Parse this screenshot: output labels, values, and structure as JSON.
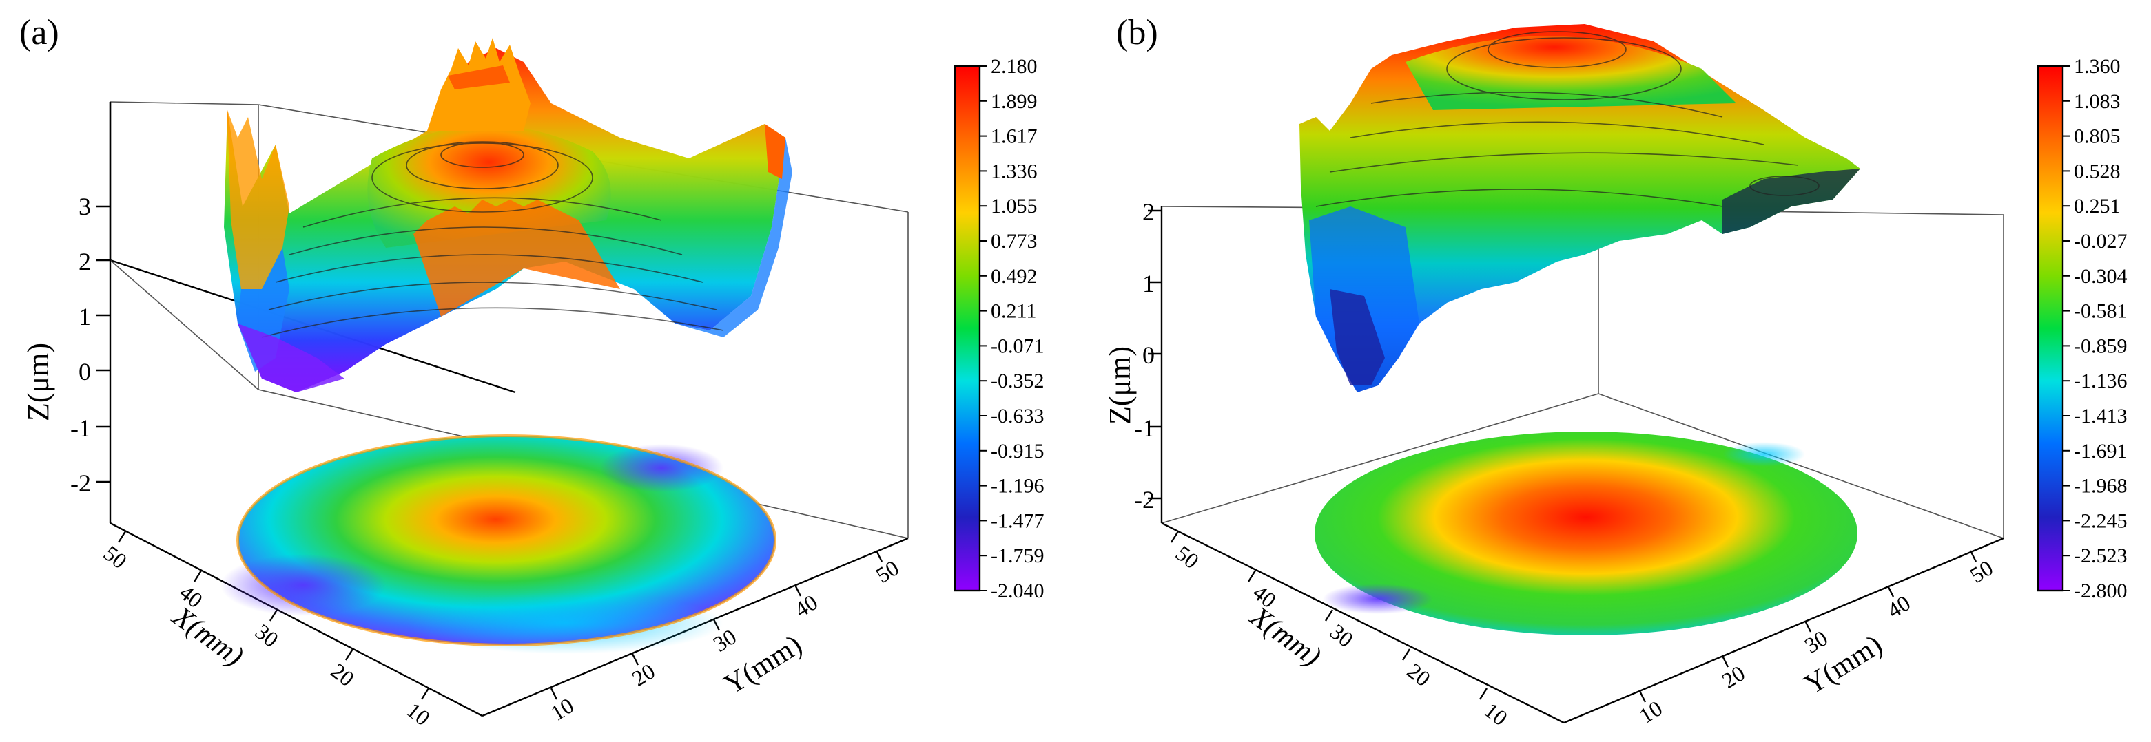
{
  "chart_data": [
    {
      "type": "surface3d",
      "panel_label": "(a)",
      "zlabel": "Z(μm)",
      "xlabel": "X(mm)",
      "ylabel": "Y(mm)",
      "z_ticks": [
        "3",
        "2",
        "1",
        "0",
        "-1",
        "-2"
      ],
      "x_ticks": [
        "50",
        "40",
        "30",
        "20",
        "10"
      ],
      "y_ticks": [
        "10",
        "20",
        "30",
        "40",
        "50"
      ],
      "colorbar": {
        "min": -2.04,
        "max": 2.18,
        "labels": [
          "2.180",
          "1.899",
          "1.617",
          "1.336",
          "1.055",
          "0.773",
          "0.492",
          "0.211",
          "-0.071",
          "-0.352",
          "-0.633",
          "-0.915",
          "-1.196",
          "-1.477",
          "-1.759",
          "-2.040"
        ]
      }
    },
    {
      "type": "surface3d",
      "panel_label": "(b)",
      "zlabel": "Z(μm)",
      "xlabel": "X(mm)",
      "ylabel": "Y(mm)",
      "z_ticks": [
        "2",
        "1",
        "0",
        "-1",
        "-2"
      ],
      "x_ticks": [
        "50",
        "40",
        "30",
        "20",
        "10"
      ],
      "y_ticks": [
        "10",
        "20",
        "30",
        "40",
        "50"
      ],
      "colorbar": {
        "min": -2.8,
        "max": 1.36,
        "labels": [
          "1.360",
          "1.083",
          "0.805",
          "0.528",
          "0.251",
          "-0.027",
          "-0.304",
          "-0.581",
          "-0.859",
          "-1.136",
          "-1.413",
          "-1.691",
          "-1.968",
          "-2.245",
          "-2.523",
          "-2.800"
        ]
      }
    }
  ],
  "colors": {
    "scale": [
      "#ff0000",
      "#ff6a00",
      "#ffd000",
      "#7ddc00",
      "#00dc40",
      "#00e0e0",
      "#0070ff",
      "#2020c0",
      "#9000ff"
    ]
  }
}
